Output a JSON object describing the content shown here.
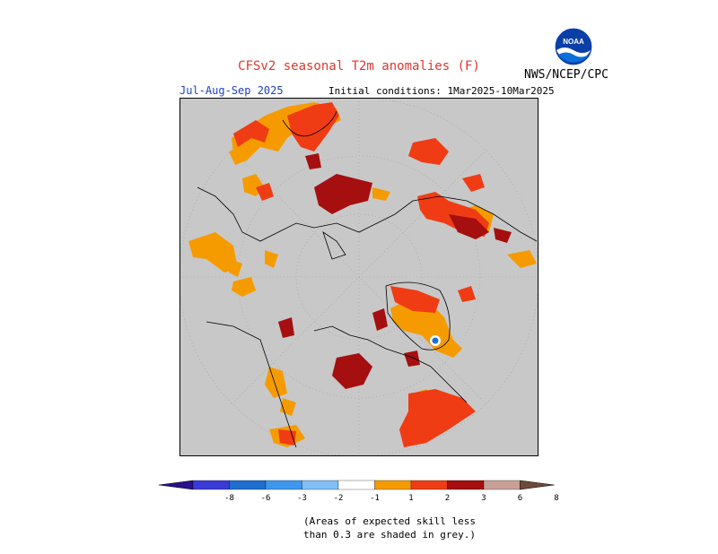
{
  "header": {
    "title": "CFSv2 seasonal T2m anomalies (F)",
    "organization": "NWS/NCEP/CPC",
    "season": "Jul-Aug-Sep 2025",
    "initial_conditions": "Initial conditions: 1Mar2025-10Mar2025",
    "logo_text": "NOAA"
  },
  "colors": {
    "background_grey": "#c8c8c8",
    "warm_1_2": "#f59b00",
    "warm_2_3": "#f03c14",
    "warm_3_6": "#a50f0f",
    "warm_6_8": "#c8a096",
    "cold_title": "#d9382f"
  },
  "legend": {
    "bins": [
      {
        "range": "<-8",
        "color": "#2b0f8c"
      },
      {
        "range": "-8 to -6",
        "color": "#3a3ad6"
      },
      {
        "range": "-6 to -3",
        "color": "#1f6fd1"
      },
      {
        "range": "-3 to -2",
        "color": "#3d97ee"
      },
      {
        "range": "-2 to -1",
        "color": "#7fbff6"
      },
      {
        "range": "-1 to 1",
        "color": "#ffffff"
      },
      {
        "range": "1 to 2",
        "color": "#f59b00"
      },
      {
        "range": "2 to 3",
        "color": "#f03c14"
      },
      {
        "range": "3 to 6",
        "color": "#a50f0f"
      },
      {
        "range": "6 to 8",
        "color": "#c8a096"
      },
      {
        "range": ">8",
        "color": "#6e4a3c"
      }
    ],
    "tick_labels": [
      "-8",
      "-6",
      "-3",
      "-2",
      "-1",
      "1",
      "2",
      "3",
      "6",
      "8"
    ]
  },
  "note": {
    "line1": "(Areas of expected skill less",
    "line2": "than 0.3 are shaded in grey.)"
  }
}
